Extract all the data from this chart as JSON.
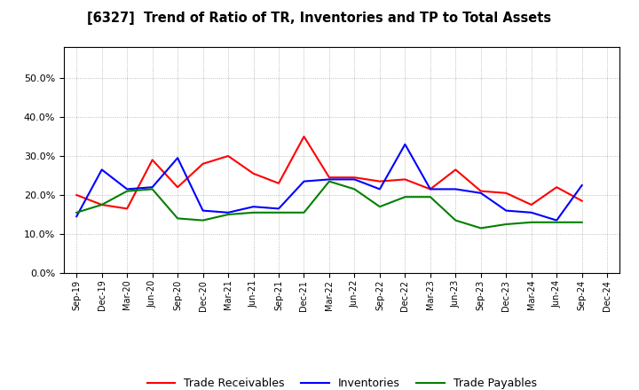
{
  "title": "[6327]  Trend of Ratio of TR, Inventories and TP to Total Assets",
  "x_labels": [
    "Sep-19",
    "Dec-19",
    "Mar-20",
    "Jun-20",
    "Sep-20",
    "Dec-20",
    "Mar-21",
    "Jun-21",
    "Sep-21",
    "Dec-21",
    "Mar-22",
    "Jun-22",
    "Sep-22",
    "Dec-22",
    "Mar-23",
    "Jun-23",
    "Sep-23",
    "Dec-23",
    "Mar-24",
    "Jun-24",
    "Sep-24",
    "Dec-24"
  ],
  "trade_receivables": [
    0.2,
    0.175,
    0.165,
    0.29,
    0.22,
    0.28,
    0.3,
    0.255,
    0.23,
    0.35,
    0.245,
    0.245,
    0.235,
    0.24,
    0.215,
    0.265,
    0.21,
    0.205,
    0.175,
    0.22,
    0.185,
    null
  ],
  "inventories": [
    0.145,
    0.265,
    0.215,
    0.22,
    0.295,
    0.16,
    0.155,
    0.17,
    0.165,
    0.235,
    0.24,
    0.24,
    0.215,
    0.33,
    0.215,
    0.215,
    0.205,
    0.16,
    0.155,
    0.135,
    0.225,
    null
  ],
  "trade_payables": [
    0.155,
    0.175,
    0.21,
    0.215,
    0.14,
    0.135,
    0.15,
    0.155,
    0.155,
    0.155,
    0.235,
    0.215,
    0.17,
    0.195,
    0.195,
    0.135,
    0.115,
    0.125,
    0.13,
    0.13,
    0.13,
    null
  ],
  "tr_color": "#FF0000",
  "inv_color": "#0000FF",
  "tp_color": "#008000",
  "ylim": [
    0.0,
    0.58
  ],
  "yticks": [
    0.0,
    0.1,
    0.2,
    0.3,
    0.4,
    0.5
  ],
  "background_color": "#FFFFFF",
  "grid_color": "#AAAAAA"
}
